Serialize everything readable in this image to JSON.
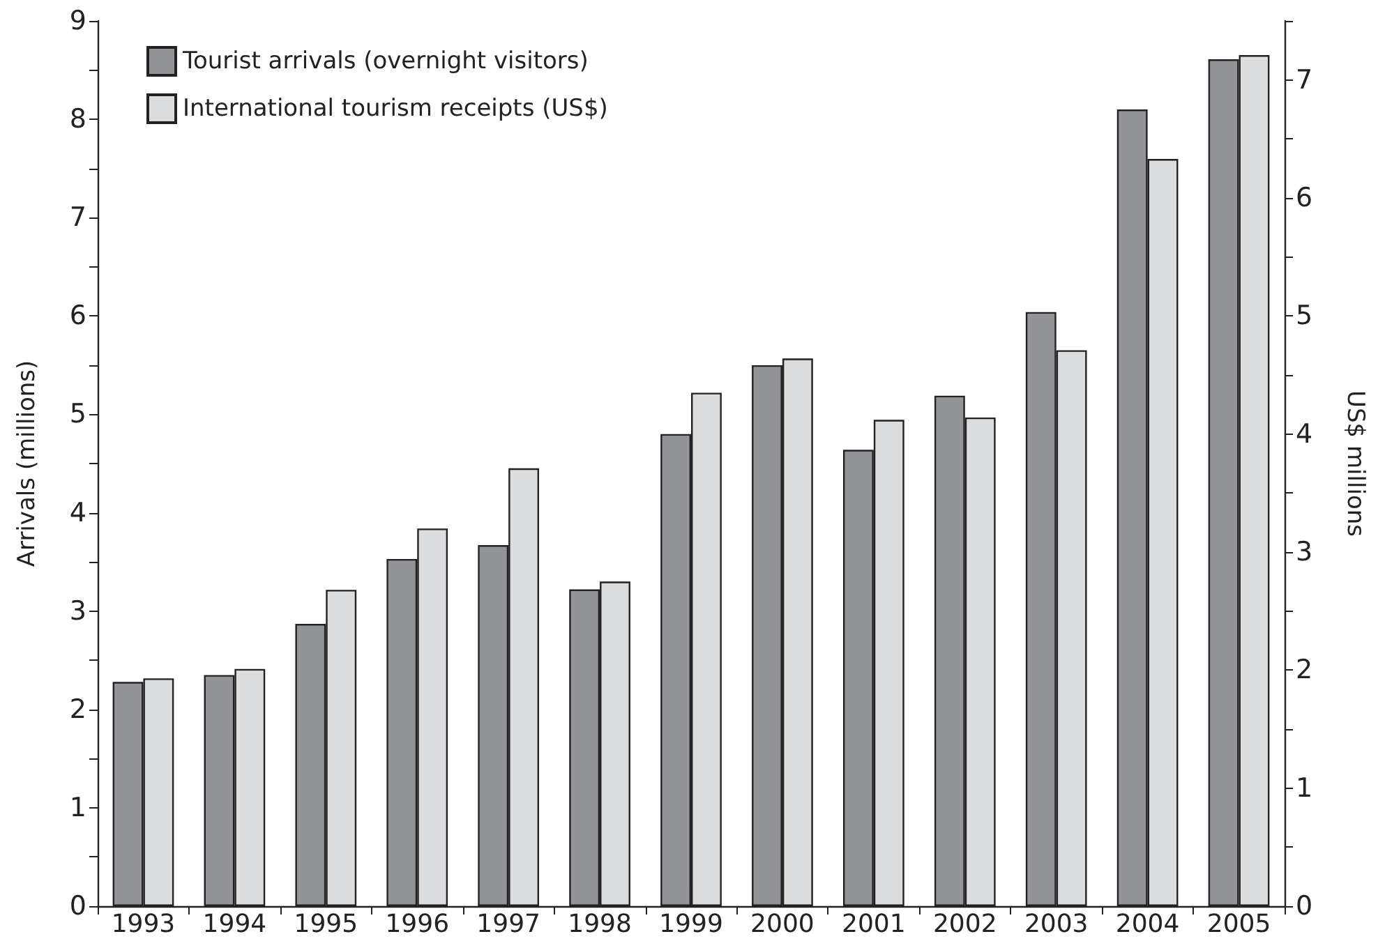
{
  "chart_data": {
    "type": "bar",
    "categories": [
      "1993",
      "1994",
      "1995",
      "1996",
      "1997",
      "1998",
      "1999",
      "2000",
      "2001",
      "2002",
      "2003",
      "2004",
      "2005"
    ],
    "series": [
      {
        "name": "Tourist arrivals (overnight visitors)",
        "color": "#939498",
        "values": [
          2.28,
          2.35,
          2.87,
          3.53,
          3.67,
          3.22,
          4.8,
          5.5,
          4.64,
          5.19,
          6.04,
          8.1,
          8.61
        ]
      },
      {
        "name": "International tourism receipts (US$)",
        "color": "#dcdddf",
        "axis": "y2",
        "values": [
          1.93,
          2.01,
          2.68,
          3.2,
          3.71,
          2.75,
          4.35,
          4.64,
          4.12,
          4.14,
          4.71,
          6.33,
          7.21
        ]
      }
    ],
    "ylabel": "Arrivals (millions)",
    "y2label": "US$ millions",
    "ylim": [
      0,
      9
    ],
    "yticks": [
      0,
      {
        "value": 0.5,
        "label": null
      },
      1,
      {
        "value": 1.5,
        "label": null
      },
      2,
      {
        "value": 2.5,
        "label": null
      },
      3,
      {
        "value": 3.5,
        "label": null
      },
      4,
      {
        "value": 4.5,
        "label": null
      },
      5,
      {
        "value": 5.5,
        "label": null
      },
      6,
      {
        "value": 6.5,
        "label": null
      },
      7,
      {
        "value": 7.5,
        "label": null
      },
      8,
      {
        "value": 8.5,
        "label": null
      },
      9
    ],
    "y2lim": [
      0,
      7.5
    ],
    "y2ticks": [
      0,
      {
        "value": 0.5,
        "label": null
      },
      1,
      {
        "value": 1.5,
        "label": null
      },
      2,
      {
        "value": 2.5,
        "label": null
      },
      3,
      {
        "value": 3.5,
        "label": null
      },
      4,
      {
        "value": 4.5,
        "label": null
      },
      5,
      {
        "value": 5.5,
        "label": null
      },
      6,
      {
        "value": 6.5,
        "label": null
      },
      7,
      {
        "value": 7.5,
        "label": null
      }
    ],
    "legend": "top left",
    "grid": false
  }
}
